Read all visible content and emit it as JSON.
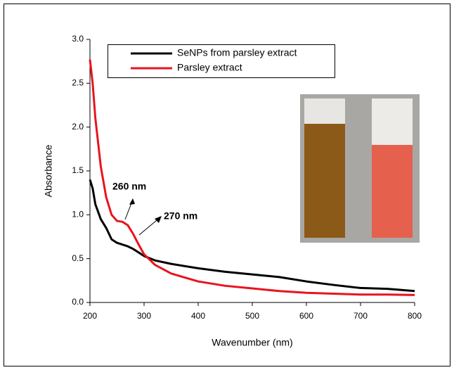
{
  "chart_data": {
    "type": "line",
    "xlabel": "Wavenumber (nm)",
    "ylabel": "Absorbance",
    "x": [
      200,
      205,
      210,
      220,
      230,
      240,
      250,
      260,
      270,
      280,
      290,
      300,
      320,
      350,
      400,
      450,
      500,
      550,
      600,
      650,
      700,
      750,
      800
    ],
    "series": [
      {
        "name": "SeNPs from parsley extract",
        "color": "#000000",
        "values": [
          1.4,
          1.3,
          1.12,
          0.95,
          0.85,
          0.72,
          0.68,
          0.66,
          0.64,
          0.61,
          0.57,
          0.53,
          0.48,
          0.44,
          0.39,
          0.35,
          0.32,
          0.29,
          0.24,
          0.2,
          0.165,
          0.155,
          0.13
        ]
      },
      {
        "name": "Parsley extract",
        "color": "#e8141e",
        "values": [
          2.77,
          2.5,
          2.1,
          1.55,
          1.2,
          1.0,
          0.93,
          0.92,
          0.88,
          0.78,
          0.66,
          0.55,
          0.43,
          0.33,
          0.24,
          0.19,
          0.16,
          0.13,
          0.11,
          0.1,
          0.09,
          0.09,
          0.085
        ]
      }
    ],
    "xlim": [
      200,
      800
    ],
    "xticks": [
      200,
      300,
      400,
      500,
      600,
      700,
      800
    ],
    "ylim": [
      0,
      3
    ],
    "yticks": [
      {
        "value": 0,
        "label": "0.0"
      },
      0.5,
      {
        "value": 1,
        "label": "1.0"
      },
      1.5,
      {
        "value": 2,
        "label": "2.0"
      },
      2.5,
      {
        "value": 3,
        "label": "3.0"
      }
    ],
    "legend": "upper left",
    "annotations": [
      "260 nm",
      "270 nm"
    ]
  }
}
